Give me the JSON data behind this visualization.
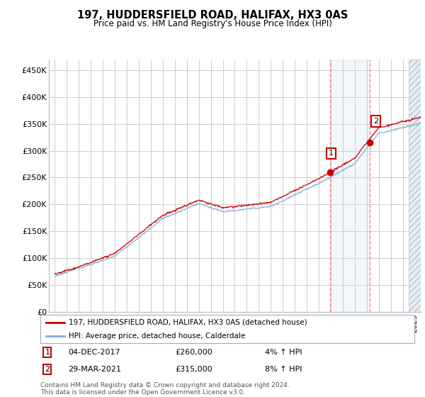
{
  "title": "197, HUDDERSFIELD ROAD, HALIFAX, HX3 0AS",
  "subtitle": "Price paid vs. HM Land Registry's House Price Index (HPI)",
  "ylabel_ticks": [
    "£0",
    "£50K",
    "£100K",
    "£150K",
    "£200K",
    "£250K",
    "£300K",
    "£350K",
    "£400K",
    "£450K"
  ],
  "ytick_values": [
    0,
    50000,
    100000,
    150000,
    200000,
    250000,
    300000,
    350000,
    400000,
    450000
  ],
  "ylim": [
    0,
    470000
  ],
  "xlim_start": 1994.5,
  "xlim_end": 2025.5,
  "sale1_x": 2017.92,
  "sale1_y": 260000,
  "sale1_label": "1",
  "sale2_x": 2021.25,
  "sale2_y": 315000,
  "sale2_label": "2",
  "legend_line1": "197, HUDDERSFIELD ROAD, HALIFAX, HX3 0AS (detached house)",
  "legend_line2": "HPI: Average price, detached house, Calderdale",
  "annotation1_date": "04-DEC-2017",
  "annotation1_price": "£260,000",
  "annotation1_hpi": "4% ↑ HPI",
  "annotation2_date": "29-MAR-2021",
  "annotation2_price": "£315,000",
  "annotation2_hpi": "8% ↑ HPI",
  "footer": "Contains HM Land Registry data © Crown copyright and database right 2024.\nThis data is licensed under the Open Government Licence v3.0.",
  "line_red": "#cc0000",
  "line_blue": "#7dadd4",
  "bg_color": "#ffffff",
  "grid_color": "#cccccc",
  "highlight_bg": "#ddeeff",
  "hatch_color": "#c8d8e8"
}
